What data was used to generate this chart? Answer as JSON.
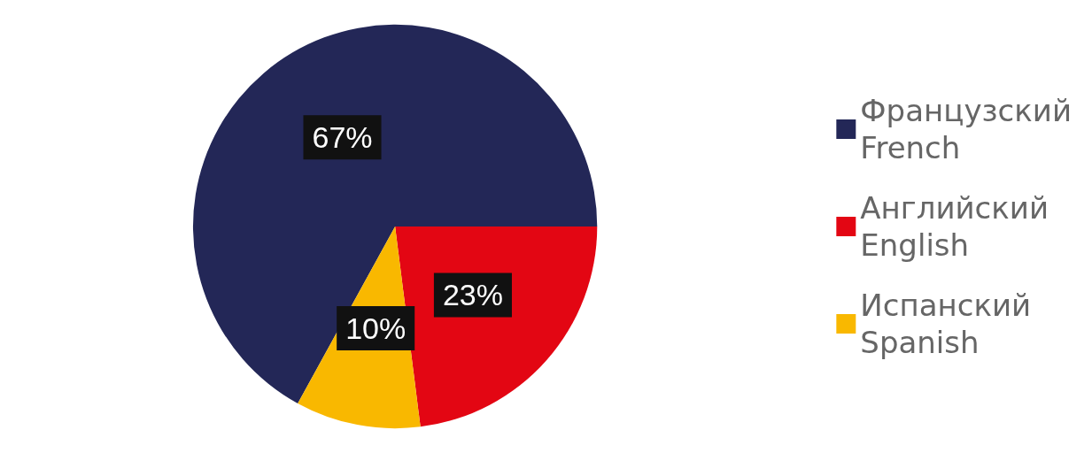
{
  "chart_data": {
    "type": "pie",
    "categories": [
      "Французский\nFrench",
      "Английский\nEnglish",
      "Испанский\nSpanish"
    ],
    "values": [
      67,
      23,
      10
    ],
    "colors": [
      "#232757",
      "#e30613",
      "#f9b800"
    ],
    "value_labels": [
      "67%",
      "23%",
      "10%"
    ],
    "legend": "right"
  }
}
